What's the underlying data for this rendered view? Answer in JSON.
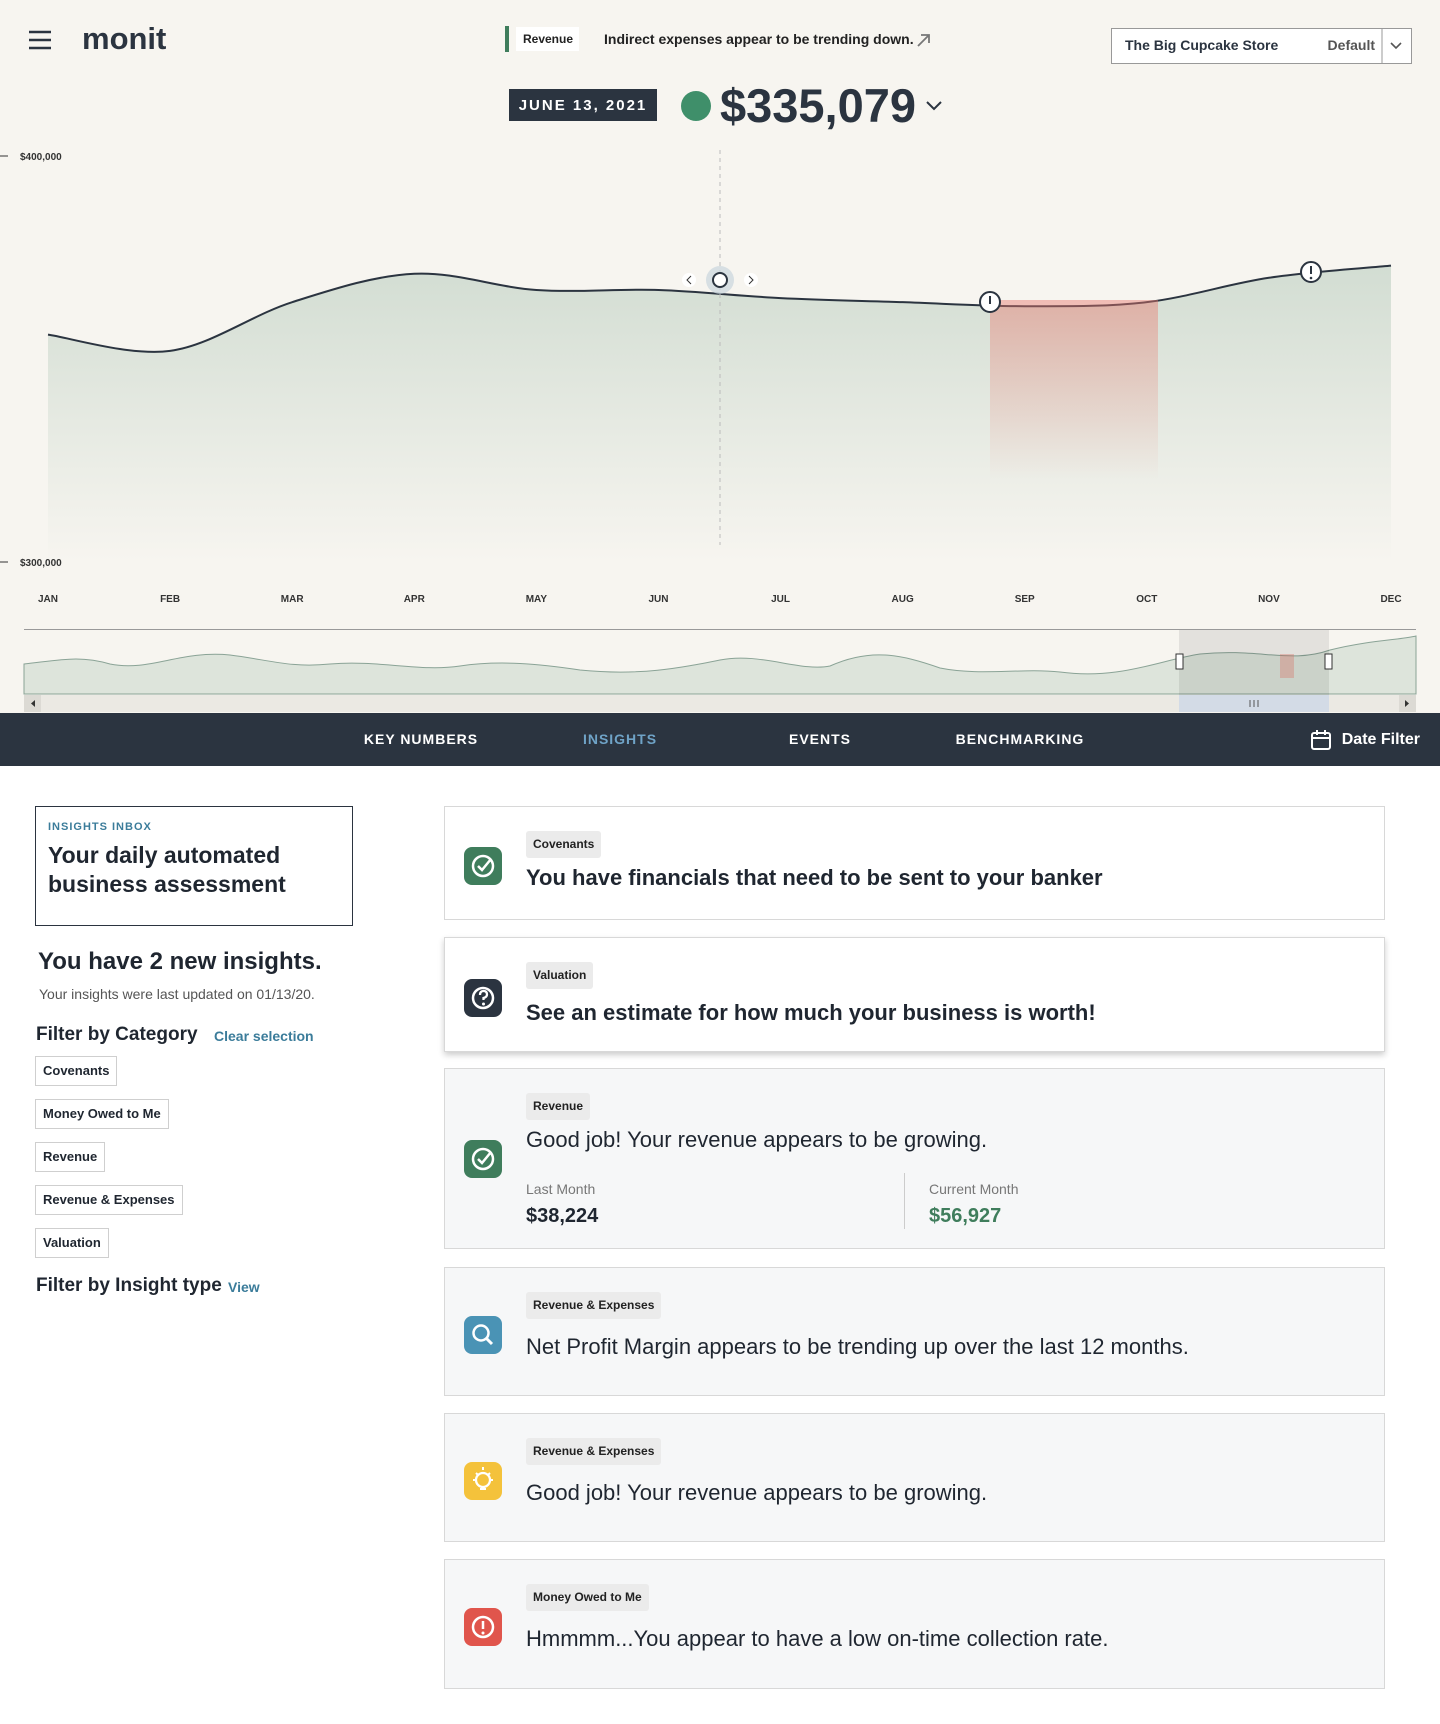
{
  "header": {
    "logo": "monit",
    "banner": {
      "tag": "Revenue",
      "text": "Indirect expenses appear to be trending down."
    },
    "store": {
      "name": "The Big Cupcake Store",
      "view": "Default"
    }
  },
  "headline": {
    "date": "JUNE 13, 2021",
    "amount": "$335,079"
  },
  "chart_data": {
    "type": "line",
    "categories": [
      "JAN",
      "FEB",
      "MAR",
      "APR",
      "MAY",
      "JUN",
      "JUL",
      "AUG",
      "SEP",
      "OCT",
      "NOV",
      "DEC"
    ],
    "values": [
      356000,
      352000,
      364000,
      371000,
      367000,
      367000,
      365000,
      364000,
      363000,
      364000,
      370000,
      373000
    ],
    "color": "#2b3440",
    "ylim": [
      300000,
      400000
    ],
    "yticks": [
      {
        "value": 300000,
        "label": "$300,000"
      },
      {
        "value": 400000,
        "label": "$400,000"
      }
    ]
  },
  "nav": {
    "tabs": [
      "KEY NUMBERS",
      "INSIGHTS",
      "EVENTS",
      "BENCHMARKING"
    ],
    "active": 1,
    "date_filter": "Date Filter"
  },
  "sidebar": {
    "eyebrow": "INSIGHTS INBOX",
    "title": "Your daily automated business assessment",
    "count": "You have 2 new insights.",
    "updated": "Your insights were last updated on 01/13/20.",
    "category_heading": "Filter by Category",
    "clear": "Clear selection",
    "categories": [
      "Covenants",
      "Money Owed to Me",
      "Revenue",
      "Revenue & Expenses",
      "Valuation"
    ],
    "type_heading": "Filter by Insight type",
    "view": "View"
  },
  "insights": [
    {
      "tag": "Covenants",
      "text": "You have financials that need to be sent to your banker",
      "icon": "check",
      "color": "#3f7d5c",
      "new": true
    },
    {
      "tag": "Valuation",
      "text": "See an estimate for how much your business is worth!",
      "icon": "question",
      "color": "#2b3440",
      "new": true
    },
    {
      "tag": "Revenue",
      "text": "Good job! Your revenue appears to be growing.",
      "icon": "check",
      "color": "#3f7d5c",
      "metrics": [
        {
          "label": "Last Month",
          "value": "$38,224"
        },
        {
          "label": "Current Month",
          "value": "$56,927"
        }
      ]
    },
    {
      "tag": "Revenue & Expenses",
      "text": "Net Profit Margin appears to be trending up over the last 12 months.",
      "icon": "search",
      "color": "#4a93b5"
    },
    {
      "tag": "Revenue & Expenses",
      "text": "Good job! Your revenue appears to be growing.",
      "icon": "bulb",
      "color": "#f4c23b"
    },
    {
      "tag": "Money Owed to Me",
      "text": "Hmmmm...You appear to have a low on-time collection rate.",
      "icon": "alert",
      "color": "#e0554c"
    }
  ]
}
